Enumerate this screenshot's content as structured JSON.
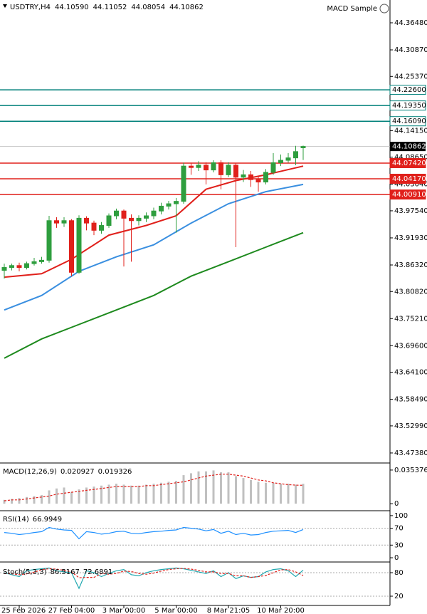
{
  "chart_data": [
    {
      "type": "candlestick",
      "title": "USDTRY,H4",
      "ohlc_labels": [
        "44.10590",
        "44.11052",
        "44.08054",
        "44.10862"
      ],
      "expert": "MACD Sample",
      "open": [
        43.852,
        43.858,
        43.862,
        43.858,
        43.866,
        43.87,
        43.873,
        43.955,
        43.95,
        43.955,
        43.848,
        43.96,
        43.95,
        43.935,
        43.945,
        43.965,
        43.975,
        43.96,
        43.955,
        43.96,
        43.965,
        43.975,
        43.985,
        43.99,
        43.995,
        44.068,
        44.065,
        44.07,
        44.06,
        44.075,
        44.05,
        44.07,
        44.045,
        44.05,
        44.04,
        44.035,
        44.055,
        44.075,
        44.08,
        44.085,
        44.1059
      ],
      "high": [
        43.866,
        43.866,
        43.868,
        43.87,
        43.878,
        43.88,
        43.965,
        43.962,
        43.962,
        43.958,
        43.966,
        43.964,
        43.955,
        43.952,
        43.97,
        43.98,
        43.978,
        43.968,
        43.966,
        43.972,
        43.982,
        43.992,
        43.996,
        44.002,
        44.075,
        44.075,
        44.078,
        44.076,
        44.08,
        44.08,
        44.076,
        44.074,
        44.06,
        44.058,
        44.048,
        44.062,
        44.095,
        44.092,
        44.095,
        44.11,
        44.11052
      ],
      "low": [
        43.835,
        43.852,
        43.85,
        43.854,
        43.862,
        43.866,
        43.868,
        43.94,
        43.942,
        43.84,
        43.845,
        43.935,
        43.925,
        43.928,
        43.94,
        43.958,
        43.86,
        43.87,
        43.945,
        43.952,
        43.958,
        43.968,
        43.978,
        43.93,
        43.99,
        44.05,
        44.058,
        44.03,
        44.055,
        44.02,
        44.045,
        43.9,
        44.035,
        44.025,
        44.015,
        44.03,
        44.05,
        44.068,
        44.075,
        44.07,
        44.08054
      ],
      "close": [
        43.858,
        43.862,
        43.858,
        43.866,
        43.87,
        43.873,
        43.955,
        43.95,
        43.955,
        43.848,
        43.96,
        43.95,
        43.935,
        43.945,
        43.965,
        43.975,
        43.96,
        43.955,
        43.96,
        43.965,
        43.975,
        43.985,
        43.99,
        43.995,
        44.068,
        44.065,
        44.07,
        44.06,
        44.075,
        44.05,
        44.07,
        44.045,
        44.05,
        44.04,
        44.035,
        44.055,
        44.075,
        44.08,
        44.085,
        44.098,
        44.10862
      ],
      "up_color": "#2e9e3e",
      "down_color": "#e0201b",
      "moving_averages": [
        {
          "color": "#e0201b",
          "x": [
            0,
            5,
            9,
            14,
            19,
            23,
            27,
            31,
            35,
            40
          ],
          "values": [
            43.838,
            43.845,
            43.875,
            43.925,
            43.945,
            43.965,
            44.02,
            44.038,
            44.05,
            44.068
          ]
        },
        {
          "color": "#3a8fe0",
          "x": [
            0,
            5,
            10,
            15,
            20,
            25,
            30,
            35,
            40
          ],
          "values": [
            43.77,
            43.8,
            43.85,
            43.88,
            43.905,
            43.95,
            43.99,
            44.015,
            44.03
          ]
        },
        {
          "color": "#1e8a1e",
          "x": [
            0,
            5,
            10,
            15,
            20,
            25,
            30,
            35,
            40
          ],
          "values": [
            43.67,
            43.71,
            43.74,
            43.77,
            43.8,
            43.84,
            43.87,
            43.9,
            43.93
          ]
        }
      ],
      "ylim": [
        43.456,
        44.412
      ],
      "yticks": [
        {
          "value": 44.3648,
          "label": "44.36480"
        },
        {
          "value": 44.3087,
          "label": "44.30870"
        },
        {
          "value": 44.2537,
          "label": "44.25370"
        },
        {
          "value": 44.1415,
          "label": "44.14150"
        },
        {
          "value": 44.0865,
          "label": "44.08650"
        },
        {
          "value": 44.0304,
          "label": "44.03040"
        },
        {
          "value": 43.9754,
          "label": "43.97540"
        },
        {
          "value": 43.9193,
          "label": "43.91930"
        },
        {
          "value": 43.8632,
          "label": "43.86320"
        },
        {
          "value": 43.8082,
          "label": "43.80820"
        },
        {
          "value": 43.7521,
          "label": "43.75210"
        },
        {
          "value": 43.696,
          "label": "43.69600"
        },
        {
          "value": 43.641,
          "label": "43.64100"
        },
        {
          "value": 43.5849,
          "label": "43.58490"
        },
        {
          "value": 43.5299,
          "label": "43.52990"
        },
        {
          "value": 43.4738,
          "label": "43.47380"
        }
      ],
      "levels": [
        {
          "value": 44.226,
          "label": "44.22600",
          "color": "#00807a"
        },
        {
          "value": 44.1935,
          "label": "44.19350",
          "color": "#00807a"
        },
        {
          "value": 44.1609,
          "label": "44.16090",
          "color": "#00807a"
        },
        {
          "value": 44.0742,
          "label": "44.07420",
          "color": "#e0201b"
        },
        {
          "value": 44.0417,
          "label": "44.04170",
          "color": "#e0201b"
        },
        {
          "value": 44.0091,
          "label": "44.00910",
          "color": "#e0201b"
        }
      ],
      "price_line": {
        "value": 44.10862,
        "label": "44.10862"
      },
      "xticks": [
        {
          "value": 2,
          "label": "25 Feb 2026"
        },
        {
          "value": 9,
          "label": "27 Feb 04:00"
        },
        {
          "value": 16,
          "label": "3 Mar 00:00"
        },
        {
          "value": 23,
          "label": "5 Mar 00:00"
        },
        {
          "value": 30,
          "label": "8 Mar 21:05"
        },
        {
          "value": 37,
          "label": "10 Mar 20:00"
        }
      ]
    },
    {
      "type": "bar",
      "title": "MACD(12,26,9)",
      "series": [
        {
          "color": "#c0c0c0",
          "values": [
            0.004,
            0.005,
            0.006,
            0.007,
            0.008,
            0.009,
            0.014,
            0.016,
            0.017,
            0.012,
            0.015,
            0.017,
            0.018,
            0.019,
            0.02,
            0.021,
            0.02,
            0.019,
            0.019,
            0.02,
            0.021,
            0.022,
            0.023,
            0.024,
            0.03,
            0.032,
            0.034,
            0.034,
            0.035,
            0.033,
            0.033,
            0.029,
            0.027,
            0.025,
            0.023,
            0.022,
            0.022,
            0.021,
            0.021,
            0.02,
            0.020927
          ]
        },
        {
          "color": "#e0201b",
          "values": [
            0.003,
            0.004,
            0.004,
            0.005,
            0.006,
            0.007,
            0.008,
            0.01,
            0.011,
            0.012,
            0.013,
            0.014,
            0.015,
            0.016,
            0.017,
            0.018,
            0.018,
            0.018,
            0.018,
            0.019,
            0.019,
            0.02,
            0.021,
            0.022,
            0.023,
            0.025,
            0.027,
            0.029,
            0.03,
            0.031,
            0.031,
            0.03,
            0.029,
            0.027,
            0.025,
            0.024,
            0.022,
            0.021,
            0.02,
            0.0195,
            0.019326
          ]
        }
      ],
      "ylim": [
        -0.0059,
        0.0413
      ],
      "yticks": [
        0.035376,
        0
      ]
    },
    {
      "type": "line",
      "title": "RSI(14)",
      "series": [
        {
          "color": "#1e90ff",
          "values": [
            60,
            58,
            55,
            57,
            60,
            62,
            72,
            68,
            66,
            65,
            45,
            62,
            60,
            56,
            58,
            62,
            63,
            58,
            57,
            60,
            62,
            63,
            65,
            66,
            72,
            70,
            68,
            64,
            67,
            58,
            63,
            55,
            58,
            54,
            55,
            60,
            63,
            64,
            65,
            60,
            66.9949
          ]
        }
      ],
      "ylim": [
        -6.7,
        108.3
      ],
      "yticks": [
        100,
        70,
        30,
        0
      ],
      "levels": [
        70,
        30
      ]
    },
    {
      "type": "line",
      "title": "Stoch(5,3,3)",
      "series": [
        {
          "color": "#20a8b0",
          "values": [
            80,
            75,
            70,
            85,
            88,
            90,
            92,
            85,
            82,
            80,
            40,
            85,
            80,
            70,
            78,
            85,
            88,
            75,
            72,
            80,
            85,
            88,
            90,
            92,
            90,
            86,
            82,
            78,
            85,
            70,
            80,
            65,
            72,
            68,
            70,
            82,
            88,
            90,
            85,
            70,
            86.5167
          ]
        },
        {
          "color": "#e0201b",
          "values": [
            78,
            77,
            75,
            77,
            81,
            88,
            90,
            89,
            86,
            82,
            67,
            68,
            68,
            78,
            76,
            78,
            84,
            83,
            78,
            76,
            79,
            84,
            88,
            90,
            91,
            89,
            86,
            82,
            82,
            78,
            78,
            72,
            72,
            68,
            70,
            73,
            80,
            87,
            88,
            82,
            72.6891
          ]
        }
      ],
      "ylim": [
        0,
        100
      ],
      "yticks": [
        80,
        20
      ],
      "levels": [
        80,
        20
      ]
    }
  ]
}
